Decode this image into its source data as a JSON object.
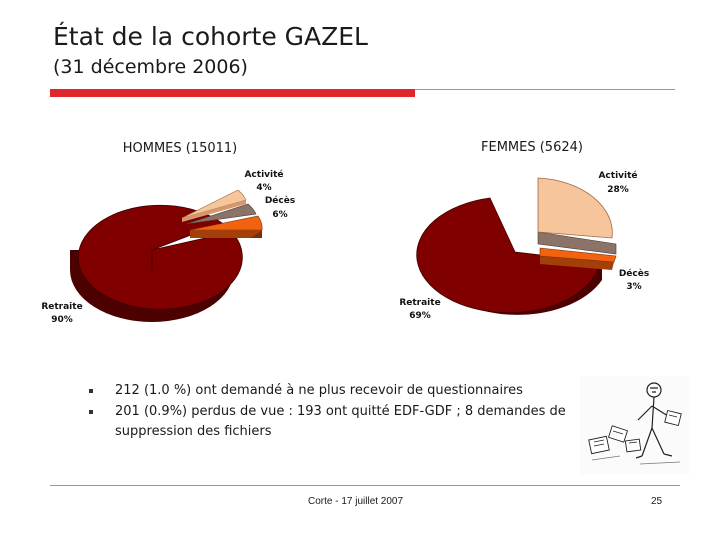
{
  "slide": {
    "title": "État de la cohorte GAZEL",
    "subtitle": "(31 décembre 2006)",
    "footer_center": "Corte - 17 juillet 2007",
    "page_number": "25"
  },
  "bullets": [
    {
      "text": "212 (1.0 %) ont demandé à ne plus recevoir de questionnaires"
    },
    {
      "text": "201 (0.9%) perdus de vue : 193 ont quitté EDF-GDF ; 8 demandes de suppression des fichiers"
    }
  ],
  "colors": {
    "retraite": "#800000",
    "activite": "#f7c59b",
    "deces": "#f2620f",
    "other": "#8c7367",
    "accent_rule": "#e0262b"
  },
  "chart_data": [
    {
      "type": "pie",
      "title": "HOMMES (15011)",
      "series": [
        {
          "name": "Retraite",
          "label": "90%",
          "value": 90
        },
        {
          "name": "Activité",
          "label": "4%",
          "value": 4
        },
        {
          "name": "Décès",
          "label": "6%",
          "value": 6
        }
      ]
    },
    {
      "type": "pie",
      "title": "FEMMES (5624)",
      "series": [
        {
          "name": "Retraite",
          "label": "69%",
          "value": 69
        },
        {
          "name": "Activité",
          "label": "28%",
          "value": 28
        },
        {
          "name": "Décès",
          "label": "3%",
          "value": 3
        }
      ]
    }
  ]
}
